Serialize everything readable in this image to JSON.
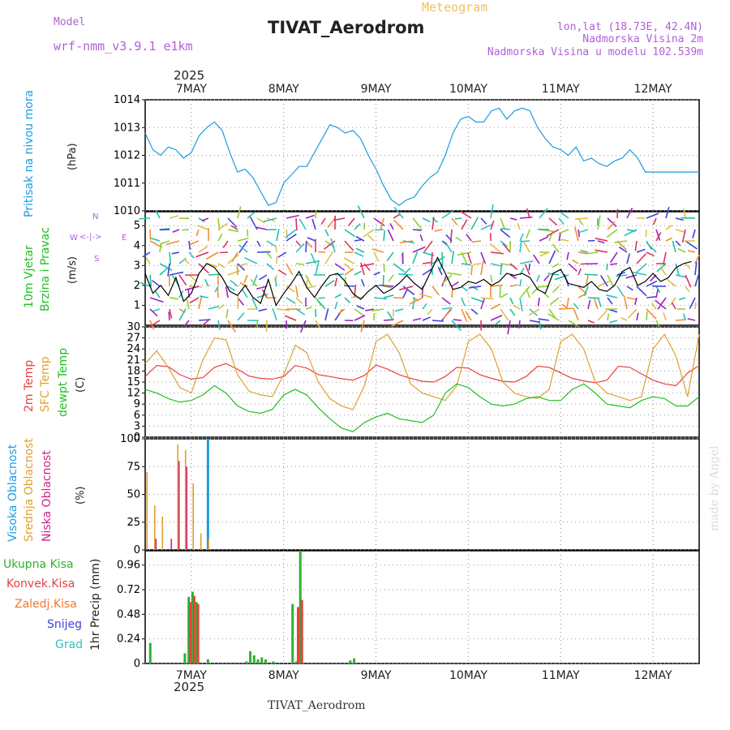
{
  "header": {
    "title": "TIVAT_Aerodrom",
    "subtitle": "Meteogram",
    "model_label": "Model",
    "model_name": "wrf-nmm_v3.9.1 e1km",
    "lonlat": "lon,lat (18.73E, 42.4N)",
    "altitude": "Nadmorska Visina 2m",
    "model_altitude": "Nadmorska Visina u modelu 102.539m",
    "year_top": "2025",
    "year_bottom": "2025",
    "footer": "TIVAT_Aerodrom",
    "watermark": "made by Angel"
  },
  "colors": {
    "pressure": "#1e9be0",
    "temp2m": "#e84040",
    "sfc": "#e0a030",
    "dewpt": "#20c020",
    "high_cloud": "#1e9be0",
    "mid_cloud": "#e0a030",
    "low_cloud": "#d0208a",
    "total_precip": "#30b030",
    "convective": "#e84040",
    "frozen": "#f07828",
    "snow": "#4040e0",
    "hail": "#30c0c0"
  },
  "chart_data": [
    {
      "type": "line",
      "panel": "pressure",
      "ylabel": "Pritisak na nivou mora",
      "unit": "(hPa)",
      "ylim": [
        1010,
        1014
      ],
      "yticks": [
        "1010",
        "1011",
        "1012",
        "1013",
        "1014"
      ],
      "x_categories": [
        "7MAY",
        "8MAY",
        "9MAY",
        "10MAY",
        "11MAY",
        "12MAY"
      ],
      "x_start_hour_offset": -12,
      "x_end_hour_offset": 132,
      "series": [
        {
          "name": "Pritisak na nivou mora",
          "x": [
            -12,
            -10,
            -8,
            -6,
            -4,
            -2,
            0,
            2,
            4,
            6,
            8,
            10,
            12,
            14,
            16,
            18,
            20,
            22,
            24,
            26,
            28,
            30,
            32,
            34,
            36,
            38,
            40,
            42,
            44,
            46,
            48,
            50,
            52,
            54,
            56,
            58,
            60,
            62,
            64,
            66,
            68,
            70,
            72,
            74,
            76,
            78,
            80,
            82,
            84,
            86,
            88,
            90,
            92,
            94,
            96,
            98,
            100,
            102,
            104,
            106,
            108,
            110,
            112,
            114,
            116,
            118,
            120,
            122,
            124,
            126,
            128,
            130,
            132
          ],
          "values": [
            1012.8,
            1012.2,
            1012.0,
            1012.3,
            1012.2,
            1011.9,
            1012.1,
            1012.7,
            1013.0,
            1013.2,
            1012.9,
            1012.1,
            1011.4,
            1011.5,
            1011.2,
            1010.7,
            1010.2,
            1010.3,
            1011.0,
            1011.3,
            1011.6,
            1011.6,
            1012.1,
            1012.6,
            1013.1,
            1013.0,
            1012.8,
            1012.9,
            1012.6,
            1012.0,
            1011.5,
            1010.9,
            1010.4,
            1010.2,
            1010.4,
            1010.5,
            1010.9,
            1011.2,
            1011.4,
            1012.0,
            1012.8,
            1013.3,
            1013.4,
            1013.2,
            1013.2,
            1013.6,
            1013.7,
            1013.3,
            1013.6,
            1013.7,
            1013.6,
            1013.0,
            1012.6,
            1012.3,
            1012.2,
            1012.0,
            1012.3,
            1011.8,
            1011.9,
            1011.7,
            1011.6,
            1011.8,
            1011.9,
            1012.2,
            1011.9,
            1011.4,
            1011.4,
            1011.4,
            1011.4,
            1011.4,
            1011.4,
            1011.4,
            1011.4
          ]
        }
      ]
    },
    {
      "type": "line",
      "panel": "wind",
      "ylabel": "10m Vjetar Brzina i Pravac",
      "unit": "(m/s)",
      "ylim": [
        0,
        5.7
      ],
      "yticks": [
        "1",
        "2",
        "3",
        "4",
        "5"
      ],
      "compass": [
        "N",
        "W",
        "E",
        "S"
      ],
      "series": [
        {
          "name": "10m Vjetar",
          "x": [
            -12,
            -10,
            -8,
            -6,
            -4,
            -2,
            0,
            2,
            4,
            6,
            8,
            10,
            12,
            14,
            16,
            18,
            20,
            22,
            24,
            26,
            28,
            30,
            32,
            34,
            36,
            38,
            40,
            42,
            44,
            46,
            48,
            50,
            52,
            54,
            56,
            58,
            60,
            62,
            64,
            66,
            68,
            70,
            72,
            74,
            76,
            78,
            80,
            82,
            84,
            86,
            88,
            90,
            92,
            94,
            96,
            98,
            100,
            102,
            104,
            106,
            108,
            110,
            112,
            114,
            116,
            118,
            120,
            122,
            124,
            126,
            128,
            130
          ],
          "values": [
            2.6,
            1.6,
            2.0,
            1.5,
            2.4,
            1.2,
            1.6,
            2.6,
            3.1,
            2.9,
            2.4,
            1.7,
            1.5,
            2.0,
            1.4,
            1.1,
            2.3,
            1.0,
            1.6,
            2.1,
            2.7,
            1.9,
            1.4,
            2.0,
            2.5,
            2.6,
            2.2,
            1.6,
            1.3,
            1.7,
            2.0,
            1.6,
            1.8,
            2.1,
            2.5,
            2.1,
            1.8,
            2.6,
            3.4,
            2.6,
            1.8,
            1.9,
            2.2,
            2.1,
            2.3,
            2.0,
            2.2,
            2.6,
            2.5,
            2.6,
            2.4,
            1.8,
            1.6,
            2.6,
            2.8,
            2.1,
            2.0,
            1.9,
            2.2,
            1.8,
            1.7,
            2.0,
            2.7,
            2.9,
            2.0,
            2.2,
            2.6,
            2.2,
            2.4,
            2.9,
            3.1,
            3.2
          ]
        }
      ]
    },
    {
      "type": "line",
      "panel": "temperature",
      "ylabel_lines": [
        "2m Temp",
        "SFC Temp",
        "dewpt Temp"
      ],
      "unit": "(C)",
      "ylim": [
        0,
        30
      ],
      "yticks": [
        "0",
        "3",
        "6",
        "9",
        "12",
        "15",
        "18",
        "21",
        "24",
        "27",
        "30"
      ],
      "series": [
        {
          "name": "2m Temp",
          "x": [
            -12,
            -9,
            -6,
            -3,
            0,
            3,
            6,
            9,
            12,
            15,
            18,
            21,
            24,
            27,
            30,
            33,
            36,
            39,
            42,
            45,
            48,
            51,
            54,
            57,
            60,
            63,
            66,
            69,
            72,
            75,
            78,
            81,
            84,
            87,
            90,
            93,
            96,
            99,
            102,
            105,
            108,
            111,
            114,
            117,
            120,
            123,
            126,
            129,
            132
          ],
          "values": [
            16.5,
            19.5,
            19.2,
            17.0,
            15.8,
            16.2,
            19.0,
            20.0,
            18.5,
            16.6,
            16.0,
            15.8,
            16.5,
            19.5,
            18.8,
            17.0,
            16.5,
            15.9,
            15.5,
            16.8,
            19.6,
            18.5,
            17.0,
            16.0,
            15.2,
            15.0,
            16.5,
            19.0,
            18.8,
            17.0,
            16.0,
            15.2,
            15.0,
            16.5,
            19.3,
            19.0,
            17.5,
            16.0,
            15.3,
            14.8,
            15.5,
            19.3,
            19.0,
            17.2,
            15.5,
            14.5,
            14.0,
            17.5,
            19.5
          ]
        },
        {
          "name": "SFC Temp",
          "x": [
            -12,
            -9,
            -6,
            -3,
            0,
            3,
            6,
            9,
            12,
            15,
            18,
            21,
            24,
            27,
            30,
            33,
            36,
            39,
            42,
            45,
            48,
            51,
            54,
            57,
            60,
            63,
            66,
            69,
            72,
            75,
            78,
            81,
            84,
            87,
            90,
            93,
            96,
            99,
            102,
            105,
            108,
            111,
            114,
            117,
            120,
            123,
            126,
            129,
            132
          ],
          "values": [
            20.0,
            23.5,
            19.0,
            13.5,
            12.0,
            21.0,
            27.0,
            26.5,
            17.0,
            12.5,
            11.5,
            11.0,
            17.0,
            25.0,
            23.0,
            15.0,
            10.5,
            8.5,
            7.5,
            14.0,
            26.0,
            28.0,
            23.0,
            14.5,
            12.0,
            11.0,
            10.0,
            14.0,
            26.0,
            28.0,
            24.0,
            15.0,
            12.0,
            11.0,
            10.5,
            13.0,
            26.0,
            28.0,
            24.0,
            15.0,
            12.0,
            11.0,
            10.0,
            11.0,
            24.0,
            28.0,
            22.0,
            11.0,
            28.0
          ]
        },
        {
          "name": "dewpt Temp",
          "x": [
            -12,
            -9,
            -6,
            -3,
            0,
            3,
            6,
            9,
            12,
            15,
            18,
            21,
            24,
            27,
            30,
            33,
            36,
            39,
            42,
            45,
            48,
            51,
            54,
            57,
            60,
            63,
            66,
            69,
            72,
            75,
            78,
            81,
            84,
            87,
            90,
            93,
            96,
            99,
            102,
            105,
            108,
            111,
            114,
            117,
            120,
            123,
            126,
            129,
            132
          ],
          "values": [
            13.0,
            12.0,
            10.5,
            9.5,
            10.0,
            11.5,
            14.0,
            12.0,
            8.5,
            7.0,
            6.5,
            7.5,
            11.5,
            13.0,
            11.5,
            8.0,
            5.0,
            2.5,
            1.5,
            4.0,
            5.5,
            6.5,
            5.0,
            4.5,
            4.0,
            6.0,
            12.0,
            14.5,
            13.5,
            11.0,
            9.0,
            8.5,
            9.0,
            10.5,
            11.0,
            10.0,
            10.0,
            13.0,
            14.5,
            12.0,
            9.0,
            8.5,
            8.0,
            10.0,
            11.0,
            10.5,
            8.5,
            8.5,
            11.0
          ]
        }
      ]
    },
    {
      "type": "bar",
      "panel": "clouds",
      "ylabel_lines": [
        "Visoka Oblacnost",
        "Srednja Oblacnost",
        "Niska Oblacnost"
      ],
      "unit": "(%)",
      "ylim": [
        0,
        100
      ],
      "yticks": [
        "0",
        "25",
        "50",
        "75",
        "100"
      ],
      "series": [
        {
          "name": "Visoka Oblacnost",
          "x": [
            -12,
            -11,
            -10,
            -9,
            -8,
            -7,
            -6,
            -5,
            -4,
            -3,
            -2,
            -1,
            0,
            1,
            2,
            3,
            4,
            5,
            6,
            7,
            8,
            9,
            10,
            11,
            12,
            13,
            14,
            15,
            16,
            17,
            18,
            19,
            20,
            21,
            22,
            23,
            24,
            25,
            26,
            27,
            28,
            29,
            30,
            31,
            32,
            33,
            34,
            35,
            36,
            37,
            38,
            39,
            40,
            41,
            42,
            43,
            44,
            45,
            46,
            47,
            48,
            49,
            50,
            51,
            52,
            53,
            54,
            55,
            56,
            57,
            58,
            59,
            60,
            61,
            62,
            63,
            64,
            65,
            66,
            67,
            68,
            69,
            70,
            71,
            72
          ],
          "values": [
            0,
            0,
            0,
            0,
            0,
            0,
            0,
            0,
            0,
            0,
            0,
            0,
            0,
            0,
            0,
            0,
            100,
            0,
            0,
            0,
            0,
            0,
            0,
            0,
            0,
            0,
            0,
            0,
            0,
            0,
            0,
            0,
            0,
            0,
            0,
            0,
            0,
            0,
            0,
            0,
            0,
            0,
            0,
            0,
            0,
            0,
            0,
            0,
            0,
            0,
            0,
            0,
            0,
            0,
            0,
            0,
            0,
            0,
            0,
            0,
            0,
            0,
            0,
            0,
            0,
            0,
            0,
            0,
            0,
            0,
            0,
            0,
            0,
            0,
            0,
            0,
            0,
            0,
            0,
            0,
            0,
            0,
            0,
            0,
            0
          ]
        },
        {
          "name": "Srednja Oblacnost",
          "x": [
            -12,
            -10,
            -8,
            -6,
            -4,
            -2,
            0,
            2,
            4,
            6,
            8
          ],
          "values": [
            70,
            40,
            30,
            0,
            95,
            90,
            60,
            15,
            10,
            0,
            0
          ]
        },
        {
          "name": "Niska Oblacnost",
          "x": [
            -12,
            -10,
            -8,
            -6,
            -4,
            -2,
            0,
            2,
            4,
            6,
            8
          ],
          "values": [
            0,
            10,
            0,
            10,
            80,
            75,
            0,
            0,
            0,
            0,
            0
          ]
        }
      ]
    },
    {
      "type": "bar",
      "panel": "precip",
      "ylabel": "1hr Precip",
      "unit": "(mm)",
      "ylim": [
        0,
        1.1
      ],
      "yticks": [
        "0",
        "0.24",
        "0.48",
        "0.72",
        "0.96"
      ],
      "legend": [
        "Ukupna Kisa",
        "Konvek.Kisa",
        "Zaledj.Kisa",
        "Snijeg",
        "Grad"
      ],
      "series": [
        {
          "name": "Ukupna Kisa",
          "x": [
            -11,
            -2,
            -1,
            0,
            1,
            4,
            14,
            15,
            16,
            17,
            18,
            19,
            21,
            26,
            27,
            28,
            41,
            42
          ],
          "values": [
            0.2,
            0.1,
            0.65,
            0.7,
            0.6,
            0.04,
            0.02,
            0.12,
            0.08,
            0.04,
            0.06,
            0.04,
            0.02,
            0.58,
            0.02,
            1.1,
            0.03,
            0.05
          ]
        },
        {
          "name": "Konvek.Kisa",
          "x": [
            -1,
            0,
            1,
            27,
            28
          ],
          "values": [
            0.6,
            0.66,
            0.58,
            0.55,
            0.62
          ]
        }
      ]
    }
  ]
}
